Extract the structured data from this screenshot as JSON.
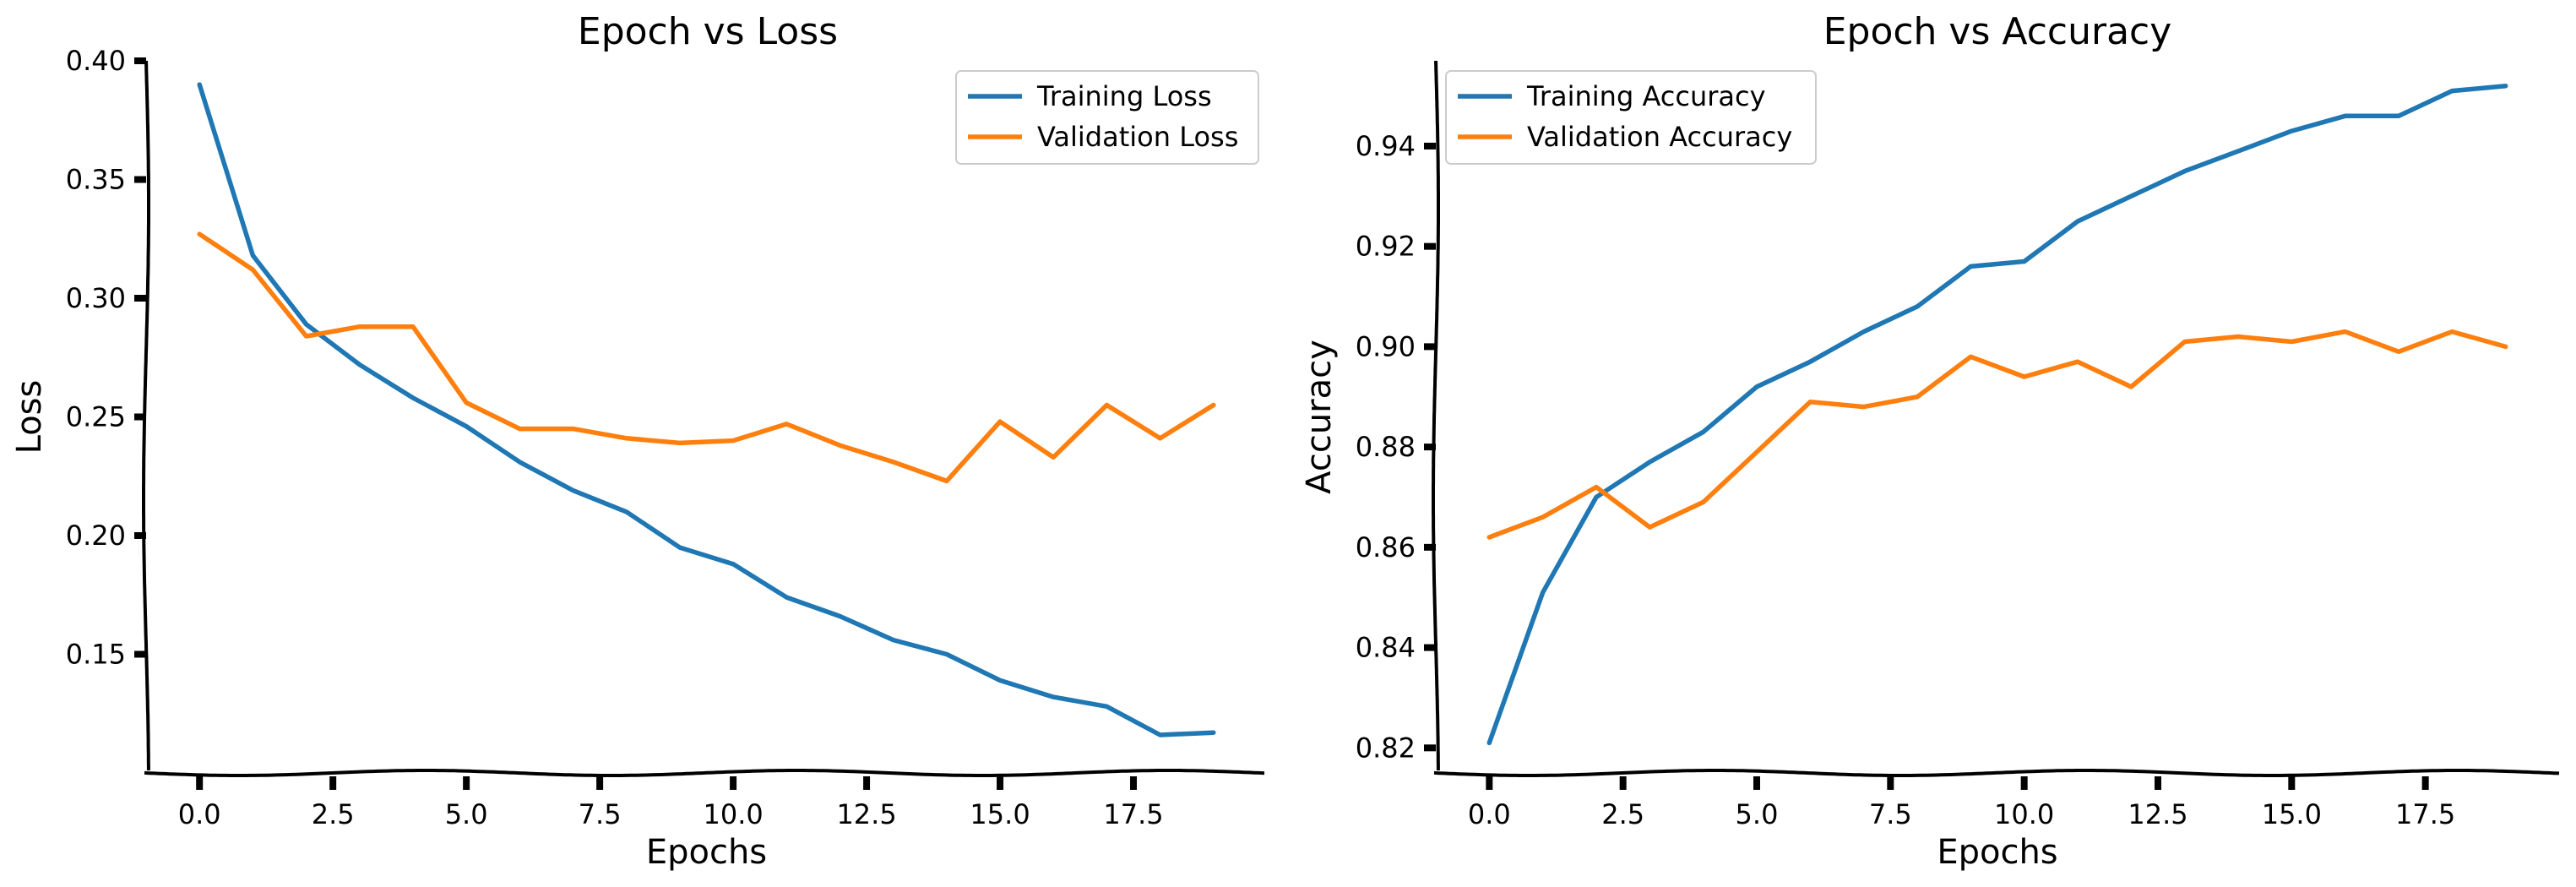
{
  "chart_data": [
    {
      "type": "line",
      "title": "Epoch vs Loss",
      "xlabel": "Epochs",
      "ylabel": "Loss",
      "xlim": [
        -1,
        20
      ],
      "ylim": [
        0.1,
        0.4
      ],
      "xticks": [
        "0.0",
        "2.5",
        "5.0",
        "7.5",
        "10.0",
        "12.5",
        "15.0",
        "17.5"
      ],
      "yticks": [
        "0.15",
        "0.20",
        "0.25",
        "0.30",
        "0.35",
        "0.40"
      ],
      "legend_position": "top-right",
      "grid": false,
      "x": [
        0,
        1,
        2,
        3,
        4,
        5,
        6,
        7,
        8,
        9,
        10,
        11,
        12,
        13,
        14,
        15,
        16,
        17,
        18,
        19
      ],
      "series": [
        {
          "name": "Training Loss",
          "color": "#1f77b4",
          "values": [
            0.39,
            0.318,
            0.289,
            0.272,
            0.258,
            0.246,
            0.231,
            0.219,
            0.21,
            0.195,
            0.188,
            0.174,
            0.166,
            0.156,
            0.15,
            0.139,
            0.132,
            0.128,
            0.116,
            0.117
          ]
        },
        {
          "name": "Validation Loss",
          "color": "#ff7f0e",
          "values": [
            0.327,
            0.312,
            0.284,
            0.288,
            0.288,
            0.256,
            0.245,
            0.245,
            0.241,
            0.239,
            0.24,
            0.247,
            0.238,
            0.231,
            0.223,
            0.248,
            0.233,
            0.255,
            0.241,
            0.255
          ]
        }
      ]
    },
    {
      "type": "line",
      "title": "Epoch vs Accuracy",
      "xlabel": "Epochs",
      "ylabel": "Accuracy",
      "xlim": [
        -1,
        20
      ],
      "ylim": [
        0.815,
        0.957
      ],
      "xticks": [
        "0.0",
        "2.5",
        "5.0",
        "7.5",
        "10.0",
        "12.5",
        "15.0",
        "17.5"
      ],
      "yticks": [
        "0.82",
        "0.84",
        "0.86",
        "0.88",
        "0.90",
        "0.92",
        "0.94"
      ],
      "legend_position": "top-left",
      "grid": false,
      "x": [
        0,
        1,
        2,
        3,
        4,
        5,
        6,
        7,
        8,
        9,
        10,
        11,
        12,
        13,
        14,
        15,
        16,
        17,
        18,
        19
      ],
      "series": [
        {
          "name": "Training Accuracy",
          "color": "#1f77b4",
          "values": [
            0.821,
            0.851,
            0.87,
            0.877,
            0.883,
            0.892,
            0.897,
            0.903,
            0.908,
            0.916,
            0.917,
            0.925,
            0.93,
            0.935,
            0.939,
            0.943,
            0.946,
            0.946,
            0.951,
            0.952
          ]
        },
        {
          "name": "Validation Accuracy",
          "color": "#ff7f0e",
          "values": [
            0.862,
            0.866,
            0.872,
            0.864,
            0.869,
            0.879,
            0.889,
            0.888,
            0.89,
            0.898,
            0.894,
            0.897,
            0.892,
            0.901,
            0.902,
            0.901,
            0.903,
            0.899,
            0.903,
            0.9
          ]
        }
      ]
    }
  ]
}
